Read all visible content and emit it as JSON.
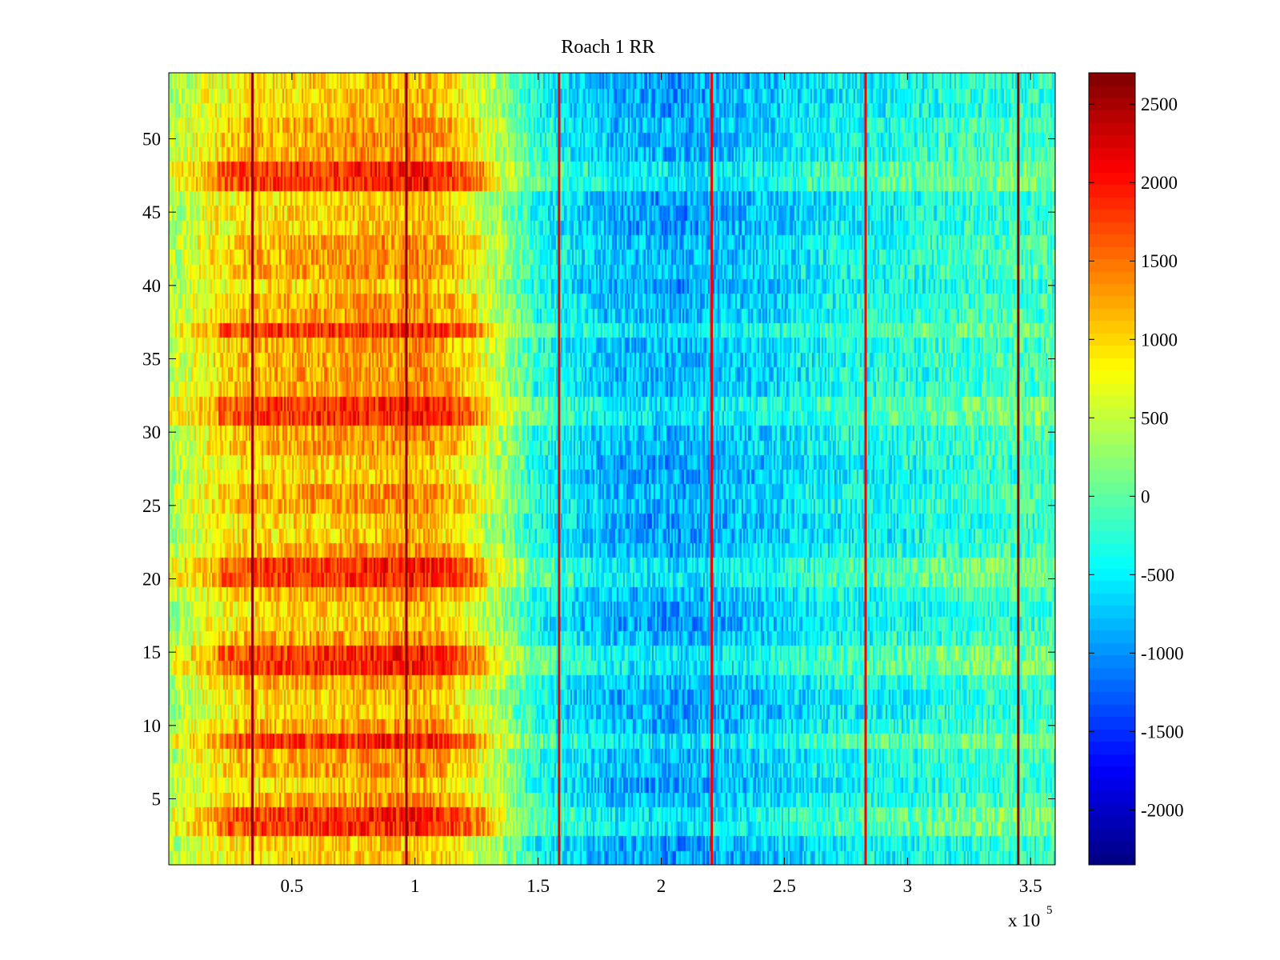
{
  "chart_data": {
    "type": "heatmap",
    "title": "Roach 1 RR",
    "xlabel": "",
    "ylabel": "",
    "x_multiplier_label": "x 10",
    "x_multiplier_exponent": "5",
    "xlim": [
      0,
      360000
    ],
    "ylim": [
      0.5,
      54.5
    ],
    "x_ticks": [
      50000,
      100000,
      150000,
      200000,
      250000,
      300000,
      350000
    ],
    "x_tick_labels": [
      "0.5",
      "1",
      "1.5",
      "2",
      "2.5",
      "3",
      "3.5"
    ],
    "y_ticks": [
      5,
      10,
      15,
      20,
      25,
      30,
      35,
      40,
      45,
      50
    ],
    "y_tick_labels": [
      "5",
      "10",
      "15",
      "20",
      "25",
      "30",
      "35",
      "40",
      "45",
      "50"
    ],
    "rows": 54,
    "colormap": "jet",
    "clim": [
      -2350,
      2700
    ],
    "colorbar": {
      "ticks": [
        -2000,
        -1500,
        -1000,
        -500,
        0,
        500,
        1000,
        1500,
        2000,
        2500
      ],
      "tick_labels": [
        "-2000",
        "-1500",
        "-1000",
        "-500",
        "0",
        "500",
        "1000",
        "1500",
        "2000",
        "2500"
      ]
    },
    "column_profile": {
      "x": [
        0,
        15000,
        30000,
        60000,
        90000,
        105000,
        120000,
        135000,
        150000,
        180000,
        210000,
        240000,
        270000,
        300000,
        330000,
        360000
      ],
      "mean_value": [
        400,
        800,
        1150,
        1250,
        1350,
        1400,
        1000,
        400,
        -300,
        -750,
        -850,
        -650,
        -400,
        -300,
        -150,
        -100
      ]
    },
    "row_offsets": {
      "hot_rows": [
        3,
        4,
        9,
        14,
        15,
        20,
        21,
        31,
        32,
        37,
        47,
        48
      ],
      "hot_row_boost": 600,
      "cool_rows": [
        1,
        2,
        6,
        11,
        12,
        17,
        18,
        23,
        24,
        27,
        28,
        40,
        44,
        45,
        46,
        52,
        53,
        54
      ],
      "cool_row_penalty": -250
    },
    "vertical_stripes": [
      {
        "x": 34000,
        "value": 2600
      },
      {
        "x": 96500,
        "value": 2600
      },
      {
        "x": 158500,
        "value": 2100
      },
      {
        "x": 220500,
        "value": 2100
      },
      {
        "x": 283000,
        "value": 2100
      },
      {
        "x": 345000,
        "value": 2600
      }
    ]
  }
}
